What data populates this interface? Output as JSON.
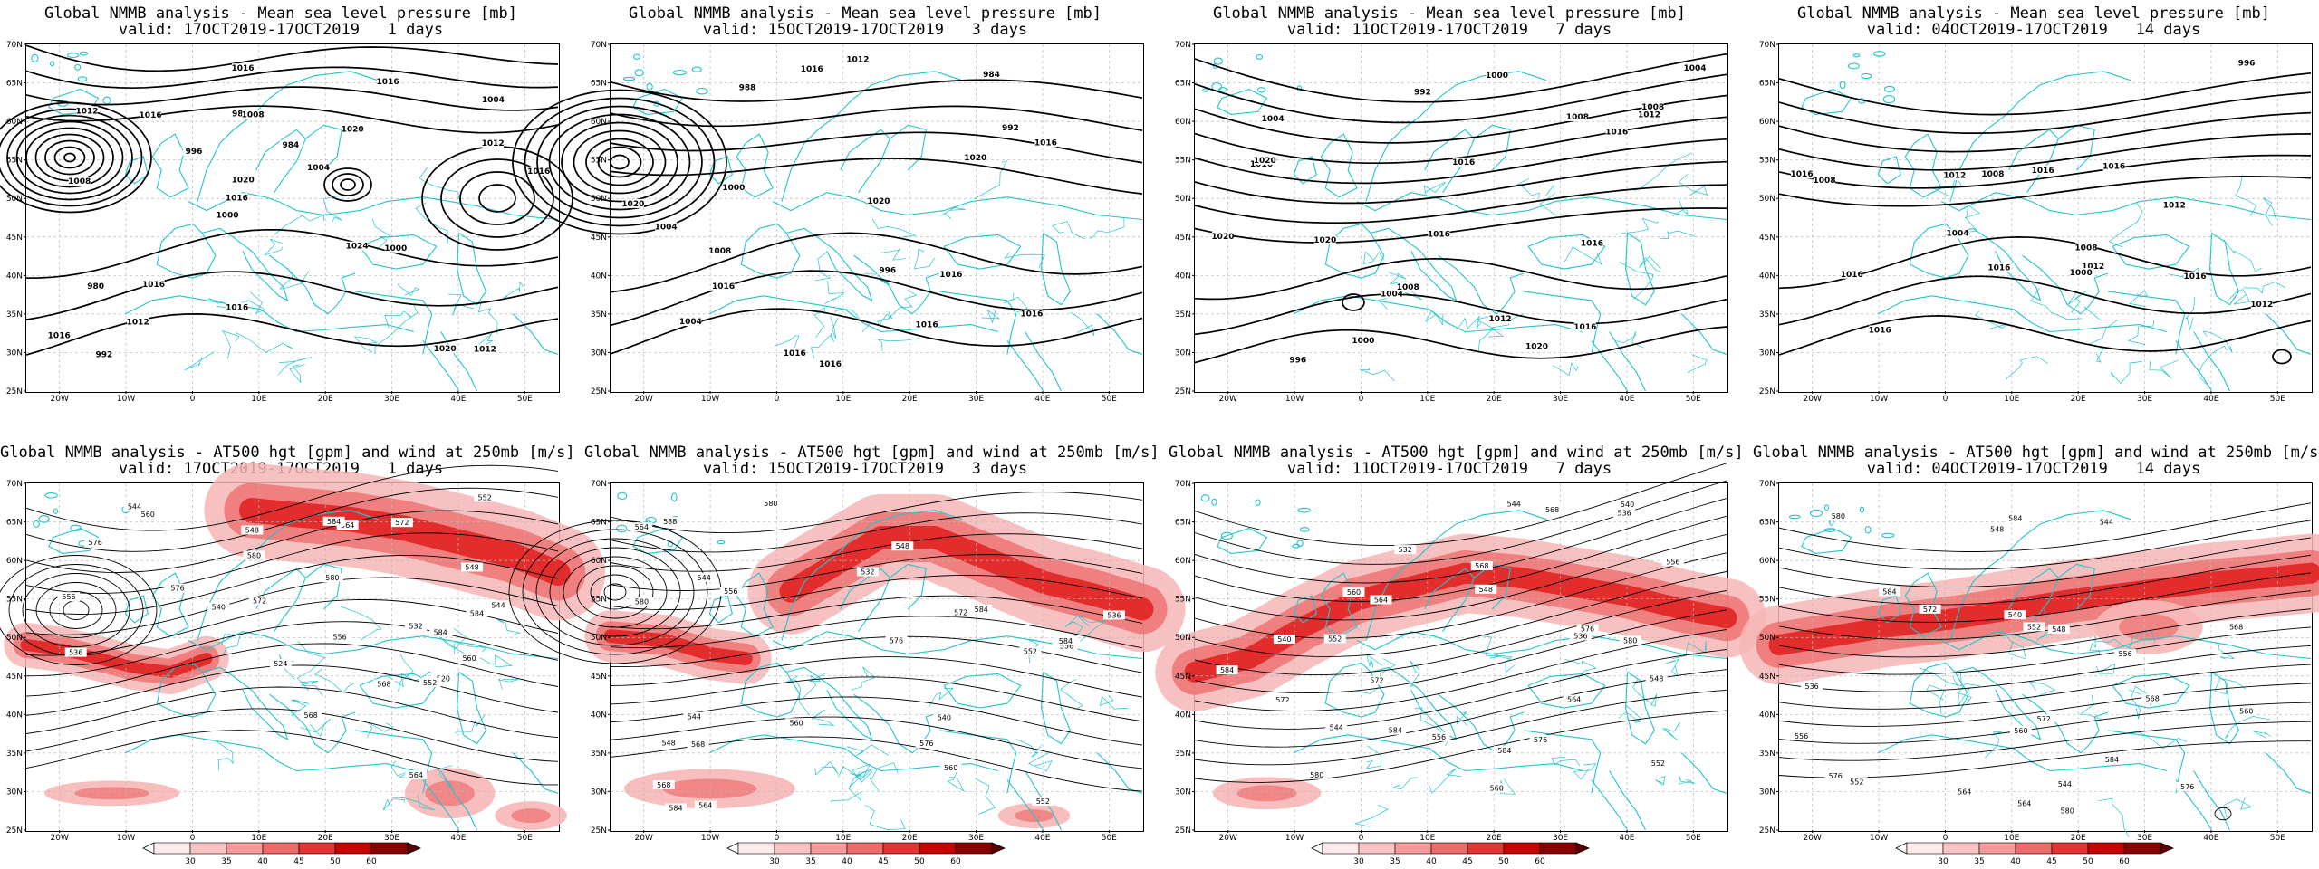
{
  "colors": {
    "coast": "#22c4cc",
    "contour": "#000000",
    "grid": "#b9b9b9",
    "jet_light": "#f7b6b6",
    "jet_mid": "#ee6f6f",
    "jet_strong": "#e01e1e"
  },
  "lat_labels": [
    "70N",
    "65N",
    "60N",
    "55N",
    "50N",
    "45N",
    "40N",
    "35N",
    "30N",
    "25N"
  ],
  "lon_labels": [
    "20W",
    "10W",
    "0",
    "10E",
    "20E",
    "30E",
    "40E",
    "50E"
  ],
  "colorbar_labels": [
    "30",
    "35",
    "40",
    "45",
    "50",
    "60"
  ],
  "top_panels": [
    {
      "title": "Global NMMB analysis - Mean sea level pressure [mb]",
      "valid": "valid: 17OCT2019-17OCT2019   1 days",
      "labels": [
        "1012",
        "1008",
        "1004",
        "1000",
        "1020",
        "992",
        "988",
        "984",
        "980",
        "996",
        "1016",
        "1012",
        "1008",
        "1004",
        "1000",
        "1012",
        "1016",
        "1016",
        "1024",
        "1012",
        "1016",
        "1016",
        "1020",
        "1016",
        "1016",
        "1016",
        "1020"
      ]
    },
    {
      "title": "Global NMMB analysis - Mean sea level pressure [mb]",
      "valid": "valid: 15OCT2019-17OCT2019   3 days",
      "labels": [
        "1004",
        "984",
        "988",
        "992",
        "996",
        "1000",
        "1008",
        "1012",
        "1016",
        "1020",
        "1004",
        "1012",
        "1016",
        "1020",
        "1016",
        "1016",
        "1016",
        "1020",
        "1016",
        "1016",
        "1016"
      ]
    },
    {
      "title": "Global NMMB analysis - Mean sea level pressure [mb]",
      "valid": "valid: 11OCT2019-17OCT2019   7 days",
      "labels": [
        "1004",
        "1008",
        "1000",
        "996",
        "992",
        "1000",
        "1004",
        "1008",
        "1012",
        "1016",
        "1004",
        "1008",
        "1012",
        "1016",
        "1020",
        "1020",
        "1020",
        "1020",
        "1016",
        "1016",
        "1016",
        "1016"
      ]
    },
    {
      "title": "Global NMMB analysis - Mean sea level pressure [mb]",
      "valid": "valid: 04OCT2019-17OCT2019   14 days",
      "labels": [
        "1012",
        "1008",
        "996",
        "1000",
        "1004",
        "1008",
        "1012",
        "1008",
        "1012",
        "1016",
        "1016",
        "1016",
        "1016",
        "1016",
        "1016",
        "1012",
        "1016"
      ]
    }
  ],
  "bottom_panels": [
    {
      "title": "Global NMMB analysis - AT500 hgt [gpm] and wind at 250mb [m/s]",
      "valid": "valid: 17OCT2019-17OCT2019   1 days",
      "labels": [
        "544",
        "548",
        "524",
        "520",
        "532",
        "536",
        "540",
        "544",
        "548",
        "552",
        "556",
        "560",
        "564",
        "568",
        "572",
        "576",
        "580",
        "584",
        "552",
        "556",
        "560",
        "564",
        "568",
        "572",
        "576",
        "580",
        "584",
        "584"
      ]
    },
    {
      "title": "Global NMMB analysis - AT500 hgt [gpm] and wind at 250mb [m/s]",
      "valid": "valid: 15OCT2019-17OCT2019   3 days",
      "labels": [
        "544",
        "548",
        "552",
        "556",
        "560",
        "564",
        "568",
        "572",
        "576",
        "580",
        "584",
        "532",
        "536",
        "540",
        "544",
        "548",
        "552",
        "556",
        "560",
        "564",
        "568",
        "572",
        "576",
        "580",
        "584",
        "584",
        "588"
      ]
    },
    {
      "title": "Global NMMB analysis - AT500 hgt [gpm] and wind at 250mb [m/s]",
      "valid": "valid: 11OCT2019-17OCT2019   7 days",
      "labels": [
        "532",
        "536",
        "540",
        "544",
        "548",
        "552",
        "556",
        "560",
        "564",
        "568",
        "572",
        "576",
        "580",
        "584",
        "536",
        "540",
        "544",
        "548",
        "552",
        "556",
        "560",
        "564",
        "568",
        "572",
        "576",
        "580",
        "584",
        "584"
      ]
    },
    {
      "title": "Global NMMB analysis - AT500 hgt [gpm] and wind at 250mb [m/s]",
      "valid": "valid: 04OCT2019-17OCT2019   14 days",
      "labels": [
        "544",
        "548",
        "552",
        "556",
        "560",
        "564",
        "568",
        "572",
        "576",
        "580",
        "584",
        "536",
        "540",
        "544",
        "548",
        "552",
        "556",
        "560",
        "564",
        "568",
        "572",
        "576",
        "580",
        "584",
        "584"
      ]
    }
  ]
}
